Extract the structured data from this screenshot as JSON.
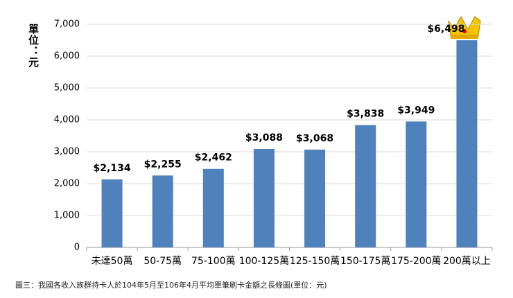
{
  "chart_data": {
    "type": "bar",
    "y_label": "單位：元",
    "caption": "圖三：我國各收入族群持卡人於104年5月至106年4月平均單筆刷卡金額之長條圖(單位：元)",
    "categories": [
      "未達50萬",
      "50-75萬",
      "75-100萬",
      "100-125萬",
      "125-150萬",
      "150-175萬",
      "175-200萬",
      "200萬以上"
    ],
    "values": [
      2134,
      2255,
      2462,
      3088,
      3068,
      3838,
      3949,
      6498
    ],
    "value_labels": [
      "$2,134",
      "$2,255",
      "$2,462",
      "$3,088",
      "$3,068",
      "$3,838",
      "$3,949",
      "$6,498"
    ],
    "color": "#4f81bd",
    "ylim": [
      0,
      7000
    ],
    "yticks": [
      0,
      {
        "value": 1000,
        "label": "1,000"
      },
      {
        "value": 2000,
        "label": "2,000"
      },
      {
        "value": 3000,
        "label": "3,000"
      },
      {
        "value": 4000,
        "label": "4,000"
      },
      {
        "value": 5000,
        "label": "5,000"
      },
      {
        "value": 6000,
        "label": "6,000"
      },
      {
        "value": 7000,
        "label": "7,000"
      }
    ],
    "grid": true
  }
}
